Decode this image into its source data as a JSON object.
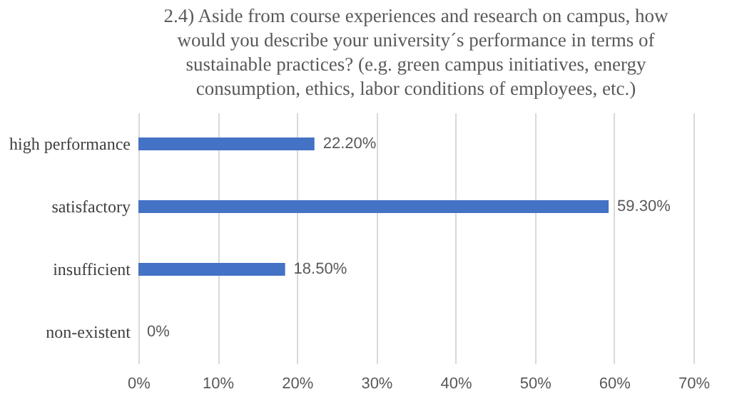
{
  "chart_data": {
    "type": "bar",
    "orientation": "horizontal",
    "title": "2.4) Aside from course experiences and research on campus, how would you describe your university´s performance in terms of sustainable practices? (e.g. green campus initiatives, energy consumption, ethics, labor conditions of employees, etc.)",
    "categories": [
      "high performance",
      "satisfactory",
      "insufficient",
      "non-existent"
    ],
    "values": [
      22.2,
      59.3,
      18.5,
      0
    ],
    "value_labels": [
      "22.20%",
      "59.30%",
      "18.50%",
      "0%"
    ],
    "color": "#4472c4",
    "xlim": [
      0,
      70
    ],
    "xticks": [
      {
        "value": 0,
        "label": "0%"
      },
      {
        "value": 10,
        "label": "10%"
      },
      {
        "value": 20,
        "label": "20%"
      },
      {
        "value": 30,
        "label": "30%"
      },
      {
        "value": 40,
        "label": "40%"
      },
      {
        "value": 50,
        "label": "50%"
      },
      {
        "value": 60,
        "label": "60%"
      },
      {
        "value": 70,
        "label": "70%"
      }
    ],
    "grid": "x"
  }
}
